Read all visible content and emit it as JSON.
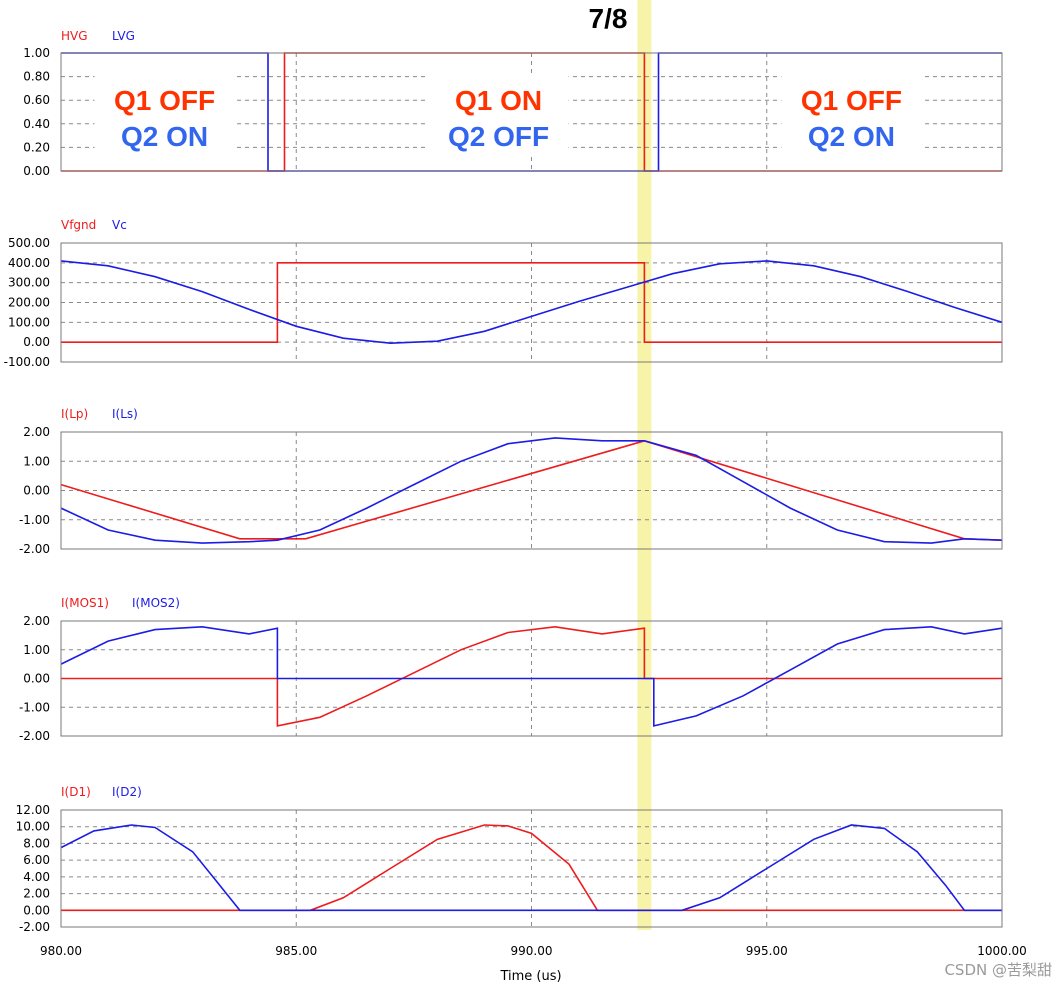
{
  "marker": {
    "label": "7/8",
    "x": 992.4,
    "color": "#f7f3a8"
  },
  "xaxis": {
    "label": "Time (us)",
    "range": [
      980,
      1000
    ],
    "ticks": [
      "980.00",
      "985.00",
      "990.00",
      "995.00",
      "1000.00"
    ]
  },
  "watermark": "CSDN @苦梨甜",
  "colors": {
    "red": "#ee1c1c",
    "blue": "#1c1ce6",
    "grid": "#8a8a8a",
    "annRed": "#ff3300",
    "annBlue": "#3366ee"
  },
  "chart_data": [
    {
      "type": "line",
      "legend": [
        "HVG",
        "LVG"
      ],
      "ylim": [
        0,
        1
      ],
      "yticks": [
        "1.00",
        "0.80",
        "0.60",
        "0.40",
        "0.20",
        "0.00"
      ],
      "series": [
        {
          "name": "HVG",
          "color": "#ee1c1c",
          "x": [
            980,
            984.75,
            984.75,
            992.4,
            992.4,
            1000
          ],
          "y": [
            0,
            0,
            1,
            1,
            0,
            0
          ]
        },
        {
          "name": "LVG",
          "color": "#1c1ce6",
          "x": [
            980,
            984.4,
            984.4,
            992.7,
            992.7,
            1000
          ],
          "y": [
            1,
            1,
            0,
            0,
            1,
            1
          ]
        }
      ],
      "annotations": [
        {
          "lines": [
            "Q1 OFF",
            "Q2 ON"
          ],
          "x": 982.2
        },
        {
          "lines": [
            "Q1 ON",
            "Q2 OFF"
          ],
          "x": 989.3
        },
        {
          "lines": [
            "Q1 OFF",
            "Q2 ON"
          ],
          "x": 996.8
        }
      ]
    },
    {
      "type": "line",
      "legend": [
        "Vfgnd",
        "Vc"
      ],
      "ylim": [
        -100,
        500
      ],
      "yticks": [
        "500.00",
        "400.00",
        "300.00",
        "200.00",
        "100.00",
        "0.00",
        "-100.00"
      ],
      "series": [
        {
          "name": "Vfgnd",
          "color": "#ee1c1c",
          "x": [
            980,
            984.6,
            984.6,
            992.4,
            992.4,
            1000
          ],
          "y": [
            0,
            0,
            400,
            400,
            0,
            0
          ]
        },
        {
          "name": "Vc",
          "color": "#1c1ce6",
          "x": [
            980,
            981,
            982,
            983,
            984,
            985,
            986,
            987,
            988,
            989,
            990,
            991,
            992,
            993,
            994,
            995,
            996,
            997,
            998,
            999,
            1000
          ],
          "y": [
            410,
            385,
            330,
            255,
            165,
            80,
            20,
            -5,
            5,
            55,
            130,
            205,
            275,
            345,
            395,
            410,
            385,
            330,
            255,
            175,
            100
          ]
        }
      ]
    },
    {
      "type": "line",
      "legend": [
        "I(Lp)",
        "I(Ls)"
      ],
      "ylim": [
        -2,
        2
      ],
      "yticks": [
        "2.00",
        "1.00",
        "0.00",
        "-1.00",
        "-2.00"
      ],
      "series": [
        {
          "name": "I(Lp)",
          "color": "#ee1c1c",
          "x": [
            980,
            983.8,
            985.2,
            992.4,
            999.2,
            1000
          ],
          "y": [
            0.2,
            -1.65,
            -1.65,
            1.7,
            -1.65,
            -1.7
          ]
        },
        {
          "name": "I(Ls)",
          "color": "#1c1ce6",
          "x": [
            980,
            981,
            982,
            983,
            984,
            984.6,
            985.5,
            986.5,
            987.5,
            988.5,
            989.5,
            990.5,
            991.5,
            992.4,
            993.5,
            994.5,
            995.5,
            996.5,
            997.5,
            998.5,
            999.2,
            1000
          ],
          "y": [
            -0.6,
            -1.35,
            -1.7,
            -1.8,
            -1.75,
            -1.7,
            -1.35,
            -0.6,
            0.2,
            1.0,
            1.6,
            1.8,
            1.7,
            1.7,
            1.2,
            0.3,
            -0.6,
            -1.35,
            -1.75,
            -1.8,
            -1.65,
            -1.7
          ]
        }
      ]
    },
    {
      "type": "line",
      "legend": [
        "I(MOS1)",
        "I(MOS2)"
      ],
      "ylim": [
        -2,
        2
      ],
      "yticks": [
        "2.00",
        "1.00",
        "0.00",
        "-1.00",
        "-2.00"
      ],
      "series": [
        {
          "name": "I(MOS1)",
          "color": "#ee1c1c",
          "x": [
            980,
            984.6,
            984.6,
            985.5,
            986.5,
            987.5,
            988.5,
            989.5,
            990.5,
            991.5,
            992.4,
            992.4,
            1000
          ],
          "y": [
            0,
            0,
            -1.65,
            -1.35,
            -0.6,
            0.2,
            1.0,
            1.6,
            1.8,
            1.55,
            1.75,
            0,
            0
          ]
        },
        {
          "name": "I(MOS2)",
          "color": "#1c1ce6",
          "x": [
            980,
            981,
            982,
            983,
            984,
            984.6,
            984.6,
            992.6,
            992.6,
            993.5,
            994.5,
            995.5,
            996.5,
            997.5,
            998.5,
            999.2,
            1000
          ],
          "y": [
            0.5,
            1.3,
            1.7,
            1.8,
            1.55,
            1.75,
            0,
            0,
            -1.65,
            -1.3,
            -0.6,
            0.3,
            1.2,
            1.7,
            1.8,
            1.55,
            1.75
          ]
        }
      ]
    },
    {
      "type": "line",
      "legend": [
        "I(D1)",
        "I(D2)"
      ],
      "ylim": [
        -2,
        12
      ],
      "yticks": [
        "12.00",
        "10.00",
        "8.00",
        "6.00",
        "4.00",
        "2.00",
        "0.00",
        "-2.00"
      ],
      "series": [
        {
          "name": "I(D1)",
          "color": "#ee1c1c",
          "x": [
            980,
            985.3,
            986,
            987,
            988,
            989,
            989.5,
            990,
            990.8,
            991.4,
            1000
          ],
          "y": [
            0,
            0,
            1.5,
            5,
            8.5,
            10.2,
            10.1,
            9.2,
            5.5,
            0,
            0
          ]
        },
        {
          "name": "I(D2)",
          "color": "#1c1ce6",
          "x": [
            980,
            980.7,
            981.5,
            982,
            982.8,
            983.3,
            983.8,
            993.2,
            994,
            995,
            996,
            996.8,
            997.5,
            998.2,
            998.8,
            999.2,
            1000
          ],
          "y": [
            7.5,
            9.5,
            10.2,
            9.9,
            7,
            3.5,
            0,
            0,
            1.5,
            5,
            8.5,
            10.2,
            9.8,
            7,
            3,
            0,
            0
          ]
        }
      ]
    }
  ]
}
